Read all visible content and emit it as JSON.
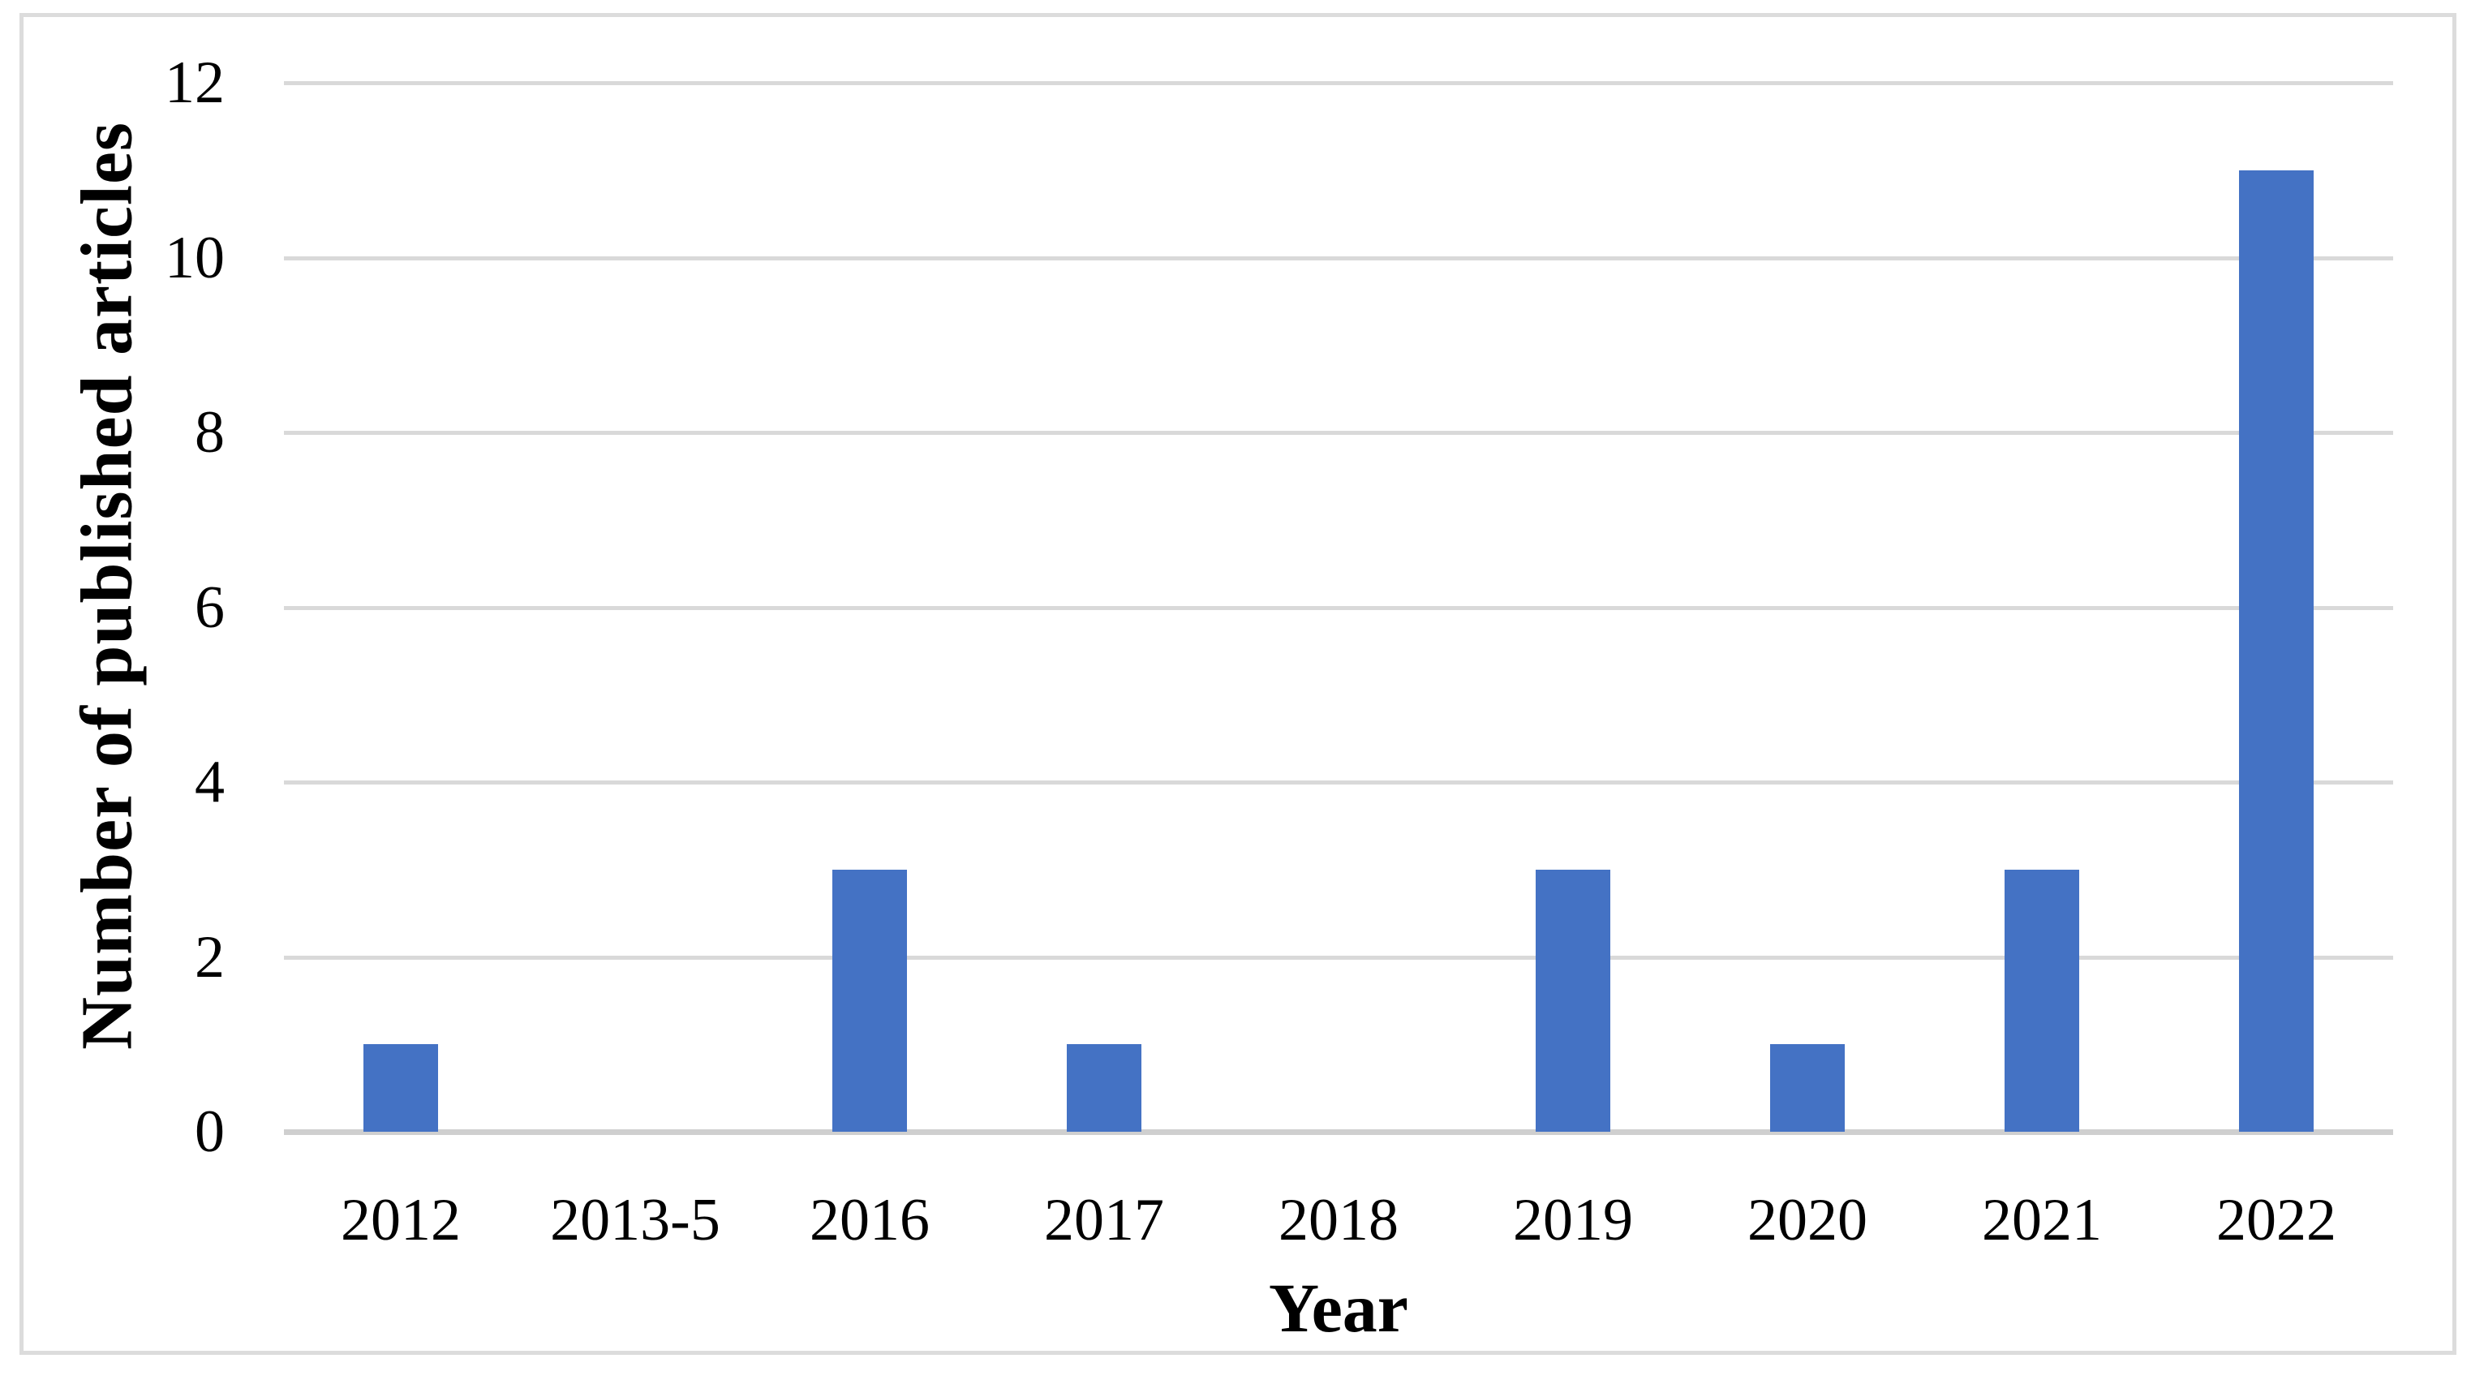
{
  "chart_data": {
    "type": "bar",
    "title": "",
    "categories": [
      "2012",
      "2013-5",
      "2016",
      "2017",
      "2018",
      "2019",
      "2020",
      "2021",
      "2022"
    ],
    "values": [
      1,
      0,
      3,
      1,
      0,
      3,
      1,
      3,
      11
    ],
    "xlabel": "Year",
    "ylabel": "Number of published articles",
    "yticks": [
      0,
      2,
      4,
      6,
      8,
      10,
      12
    ],
    "ylim": [
      0,
      12
    ],
    "grid": "horizontal-major",
    "legend": "none",
    "bar_color": "#4472C4",
    "gridline_color": "#d9d9d9",
    "axis_line_color": "#cfcfcf",
    "frame_border_color": "#dcdcdc",
    "text_color": "#000000"
  }
}
